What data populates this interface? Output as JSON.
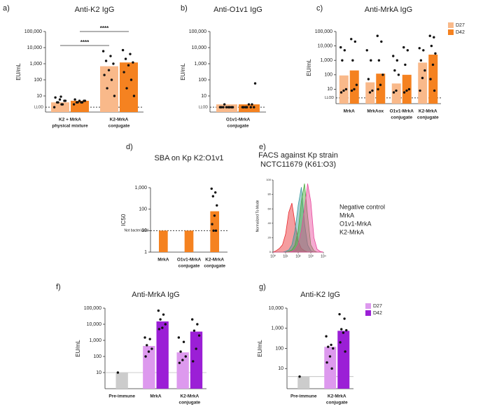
{
  "chart_data": [
    {
      "type": "bar",
      "panel": "a)",
      "title": "Anti-K2 IgG",
      "ylabel": "EU/mL",
      "log": true,
      "ylim": [
        1,
        100000
      ],
      "yticks": [
        10,
        100,
        {
          "value": 1000,
          "label": "1,000"
        },
        {
          "value": 10000,
          "label": "10,000"
        },
        {
          "value": 100000,
          "label": "100,000"
        }
      ],
      "ref_line": {
        "value": 2,
        "label": "LLOD",
        "style": "dotted"
      },
      "categories": [
        [
          "K2 + MrkA",
          "physical mixture"
        ],
        [
          "K2-MrkA",
          "conjugate"
        ]
      ],
      "series": [
        {
          "color": "#f9b98a",
          "values": [
            4,
            700
          ],
          "points": [
            [
              2,
              3,
              4,
              5,
              6,
              8,
              3,
              4,
              5,
              9
            ],
            [
              6000,
              3000,
              1500,
              1000,
              400,
              200,
              100,
              30,
              10
            ]
          ]
        },
        {
          "color": "#f58220",
          "values": [
            5,
            1200
          ],
          "points": [
            [
              3,
              4,
              4,
              5,
              5,
              6,
              4,
              4,
              5
            ],
            [
              7000,
              4000,
              2000,
              1200,
              800,
              300,
              100,
              30,
              10
            ]
          ]
        }
      ],
      "annotations": [
        {
          "text": "****"
        },
        {
          "text": "****"
        }
      ]
    },
    {
      "type": "bar",
      "panel": "b)",
      "title": "Anti-O1v1 IgG",
      "ylabel": "EU/mL",
      "log": true,
      "ylim": [
        1,
        100000
      ],
      "yticks": [
        10,
        100,
        {
          "value": 1000,
          "label": "1,000"
        },
        {
          "value": 10000,
          "label": "10,000"
        },
        {
          "value": 100000,
          "label": "100,000"
        }
      ],
      "ref_line": {
        "value": 2,
        "label": "LLOD",
        "style": "dotted"
      },
      "categories": [
        [
          "O1v1-MrkA",
          "conjugate"
        ]
      ],
      "series": [
        {
          "color": "#f9b98a",
          "values": [
            3
          ],
          "points": [
            [
              2,
              2,
              2,
              2,
              2,
              2,
              2,
              3,
              2
            ]
          ]
        },
        {
          "color": "#f58220",
          "values": [
            3
          ],
          "points": [
            [
              2,
              2,
              2,
              2,
              3,
              2,
              3,
              2,
              60
            ]
          ]
        }
      ]
    },
    {
      "type": "bar",
      "panel": "c)",
      "title": "Anti-MrkA IgG",
      "ylabel": "EU/mL",
      "log": true,
      "ylim": [
        1,
        100000
      ],
      "yticks": [
        10,
        100,
        {
          "value": 1000,
          "label": "1,000"
        },
        {
          "value": 10000,
          "label": "10,000"
        },
        {
          "value": 100000,
          "label": "100,000"
        }
      ],
      "ref_line": {
        "value": 2.5,
        "label": "LLOD",
        "style": "dotted"
      },
      "categories": [
        [
          "MrkA"
        ],
        [
          "MrkAox"
        ],
        [
          "O1v1-MrkA",
          "conjugate"
        ],
        [
          "K2-MrkA",
          "conjugate"
        ]
      ],
      "series": [
        {
          "name": "D27",
          "color": "#f9b98a",
          "values": [
            90,
            30,
            25,
            700
          ],
          "points": [
            [
              8000,
              5000,
              1000,
              10,
              8,
              6
            ],
            [
              5000,
              1000,
              50,
              8,
              6
            ],
            [
              2000,
              1000,
              200,
              100,
              8,
              6
            ],
            [
              7000,
              5000,
              1000,
              200,
              60,
              8
            ]
          ]
        },
        {
          "name": "D42",
          "color": "#f58220",
          "values": [
            200,
            120,
            100,
            2500
          ],
          "points": [
            [
              30000,
              20000,
              1000,
              20,
              10,
              8
            ],
            [
              50000,
              20000,
              1000,
              100,
              20,
              10
            ],
            [
              8000,
              5000,
              500,
              10,
              8,
              6
            ],
            [
              50000,
              40000,
              10000,
              3000,
              500,
              50,
              8
            ]
          ]
        }
      ],
      "legend": "top-right"
    },
    {
      "type": "bar",
      "panel": "d)",
      "title": "SBA on Kp K2:O1v1",
      "ylabel": "IC50",
      "log": true,
      "ylim": [
        1,
        1000
      ],
      "yticks": [
        1,
        10,
        100,
        {
          "value": 1000,
          "label": "1,000"
        }
      ],
      "ref_line": {
        "value": 10,
        "label": "Not bactericidal",
        "style": "dotted"
      },
      "categories": [
        [
          "MrkA"
        ],
        [
          "O1v1-MrkA",
          "conjugate"
        ],
        [
          "K2-MrkA",
          "conjugate"
        ]
      ],
      "series": [
        {
          "color": "#f58220",
          "values": [
            10,
            10,
            80
          ],
          "points": [
            [],
            [],
            [
              900,
              600,
              400,
              150,
              50,
              20,
              10,
              10
            ]
          ]
        }
      ]
    },
    {
      "type": "area",
      "panel": "e)",
      "title": [
        "FACS against Kp strain",
        "NCTC11679 (K61:O3)"
      ],
      "ylabel": "Normalized To Mode",
      "xlog": true,
      "xlim": [
        1,
        10000
      ],
      "ylim": [
        0,
        100
      ],
      "xticks": [
        {
          "value": 1,
          "label": "10⁰"
        },
        {
          "value": 10,
          "label": "10¹"
        },
        {
          "value": 100,
          "label": "10²"
        },
        {
          "value": 1000,
          "label": "10³"
        },
        {
          "value": 10000,
          "label": "10⁴"
        }
      ],
      "yticks": [
        0,
        20,
        40,
        60,
        80,
        100
      ],
      "x": [
        1,
        1.78,
        3.16,
        5.62,
        10,
        17.8,
        31.6,
        56.2,
        100,
        178,
        316,
        562,
        1000,
        1780,
        3160,
        5620,
        10000
      ],
      "series": [
        {
          "name": "Negative control",
          "color": "#e8262b",
          "values": [
            0,
            2,
            5,
            10,
            25,
            55,
            68,
            40,
            15,
            5,
            2,
            0,
            0,
            0,
            0,
            0,
            0
          ]
        },
        {
          "name": "MrkA",
          "color": "#3a9aa0",
          "values": [
            0,
            0,
            0,
            0,
            1,
            3,
            10,
            30,
            65,
            90,
            40,
            10,
            2,
            0,
            0,
            0,
            0
          ]
        },
        {
          "name": "O1v1-MrkA",
          "color": "#4aa83a",
          "values": [
            0,
            0,
            0,
            0,
            0,
            1,
            3,
            10,
            30,
            70,
            95,
            50,
            10,
            2,
            0,
            0,
            0
          ]
        },
        {
          "name": "K2-MrkA",
          "color": "#e8459a",
          "values": [
            0,
            0,
            0,
            0,
            0,
            0,
            1,
            3,
            10,
            30,
            60,
            95,
            70,
            20,
            4,
            1,
            0
          ]
        }
      ]
    },
    {
      "type": "bar",
      "panel": "f)",
      "title": "Anti-MrkA IgG",
      "ylabel": "EU/mL",
      "log": true,
      "ylim": [
        1,
        100000
      ],
      "yticks": [
        10,
        100,
        {
          "value": 1000,
          "label": "1,000"
        },
        {
          "value": 10000,
          "label": "10,000"
        },
        {
          "value": 100000,
          "label": "100,000"
        }
      ],
      "ref_line": {
        "value": 10,
        "style": "solid"
      },
      "categories": [
        [
          "Pre-immune"
        ],
        [
          "MrkA"
        ],
        [
          "K2-MrkA",
          "conjugate"
        ]
      ],
      "series": [
        {
          "color": "#cccccc",
          "values": [
            10,
            null,
            null
          ],
          "points": [
            [
              10
            ],
            [],
            []
          ]
        },
        {
          "color": "#dd99ee",
          "values": [
            null,
            450,
            180
          ],
          "points": [
            [],
            [
              1500,
              1200,
              500,
              300,
              200,
              100
            ],
            [
              1500,
              800,
              200,
              100,
              60,
              40
            ]
          ]
        },
        {
          "color": "#9b1fd6",
          "values": [
            null,
            15000,
            3500
          ],
          "points": [
            [],
            [
              70000,
              40000,
              20000,
              10000,
              6000,
              5000
            ],
            [
              20000,
              10000,
              4000,
              2000,
              300,
              50
            ]
          ]
        }
      ]
    },
    {
      "type": "bar",
      "panel": "g)",
      "title": "Anti-K2 IgG",
      "ylabel": "EU/mL",
      "log": true,
      "ylim": [
        1,
        10000
      ],
      "yticks": [
        10,
        100,
        {
          "value": 1000,
          "label": "1,000"
        },
        {
          "value": 10000,
          "label": "10,000"
        }
      ],
      "ref_line": {
        "value": 4,
        "style": "solid"
      },
      "categories": [
        [
          "Pre-immune"
        ],
        [
          "K2-MrkA",
          "conjugate"
        ]
      ],
      "series": [
        {
          "color": "#cccccc",
          "values": [
            4,
            null
          ],
          "points": [
            [
              4
            ],
            []
          ]
        },
        {
          "name": "D27",
          "color": "#dd99ee",
          "values": [
            null,
            120
          ],
          "points": [
            [],
            [
              400,
              150,
              120,
              100,
              40,
              20,
              10
            ]
          ]
        },
        {
          "name": "D42",
          "color": "#9b1fd6",
          "values": [
            null,
            750
          ],
          "points": [
            [],
            [
              5000,
              3000,
              900,
              800,
              600,
              200,
              70
            ]
          ]
        }
      ],
      "legend": "top-right"
    }
  ]
}
